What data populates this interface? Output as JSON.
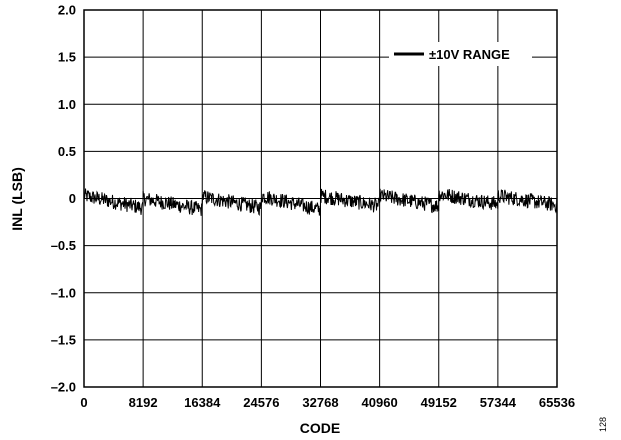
{
  "chart_data": {
    "type": "line",
    "title": "",
    "xlabel": "CODE",
    "ylabel": "INL (LSB)",
    "xlim": [
      0,
      65536
    ],
    "ylim": [
      -2.0,
      2.0
    ],
    "x_ticks": [
      0,
      8192,
      16384,
      24576,
      32768,
      40960,
      49152,
      57344,
      65536
    ],
    "x_tick_labels": [
      "0",
      "8192",
      "16384",
      "24576",
      "32768",
      "40960",
      "49152",
      "57344",
      "65536"
    ],
    "y_ticks": [
      2.0,
      1.5,
      1.0,
      0.5,
      0,
      -0.5,
      -1.0,
      -1.5,
      -2.0
    ],
    "y_tick_labels": [
      "2.0",
      "1.5",
      "1.0",
      "0.5",
      "0",
      "–0.5",
      "–1.0",
      "–1.5",
      "–2.0"
    ],
    "grid": true,
    "legend_position": "top-right",
    "series": [
      {
        "name": "±10V RANGE",
        "color": "#000000",
        "noise_band_lsb": 0.1,
        "segments": [
          {
            "x_start": 0,
            "x_end": 8192,
            "y_start": 0.03,
            "y_end": -0.1
          },
          {
            "x_start": 8192,
            "x_end": 16384,
            "y_start": 0.0,
            "y_end": -0.12
          },
          {
            "x_start": 16384,
            "x_end": 24576,
            "y_start": 0.02,
            "y_end": -0.1
          },
          {
            "x_start": 24576,
            "x_end": 32768,
            "y_start": 0.03,
            "y_end": -0.12
          },
          {
            "x_start": 32768,
            "x_end": 40960,
            "y_start": 0.03,
            "y_end": -0.08
          },
          {
            "x_start": 40960,
            "x_end": 49152,
            "y_start": 0.03,
            "y_end": -0.08
          },
          {
            "x_start": 49152,
            "x_end": 57344,
            "y_start": 0.05,
            "y_end": -0.06
          },
          {
            "x_start": 57344,
            "x_end": 65536,
            "y_start": 0.03,
            "y_end": -0.07
          }
        ]
      }
    ]
  },
  "figure_id": "128"
}
